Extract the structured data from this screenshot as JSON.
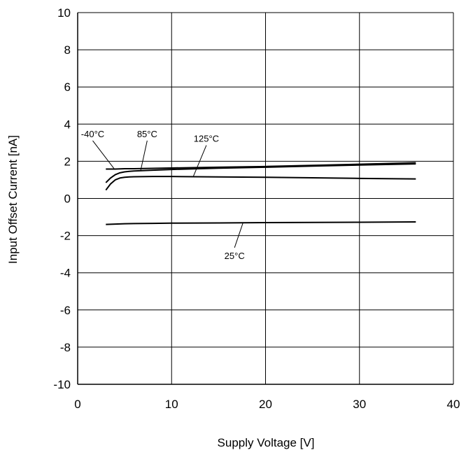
{
  "chart_data": {
    "type": "line",
    "title": "",
    "xlabel": "Supply Voltage [V]",
    "ylabel": "Input Offset Current [nA]",
    "xlim": [
      0,
      40
    ],
    "ylim": [
      -10,
      10
    ],
    "x_ticks": [
      "0",
      "10",
      "20",
      "30",
      "40"
    ],
    "y_ticks": [
      "10",
      "8",
      "6",
      "4",
      "2",
      "0",
      "-2",
      "-4",
      "-6",
      "-8",
      "-10"
    ],
    "x_tick_values": [
      0,
      10,
      20,
      30,
      40
    ],
    "y_tick_values": [
      10,
      8,
      6,
      4,
      2,
      0,
      -2,
      -4,
      -6,
      -8,
      -10
    ],
    "grid": true,
    "legend": "none",
    "line_color": "#000000",
    "series": [
      {
        "name": "-40°C",
        "x": [
          3,
          4,
          5,
          6,
          8,
          10,
          15,
          20,
          25,
          30,
          36
        ],
        "y": [
          1.58,
          1.58,
          1.6,
          1.6,
          1.62,
          1.64,
          1.68,
          1.72,
          1.78,
          1.84,
          1.92
        ]
      },
      {
        "name": "85°C",
        "x": [
          3,
          3.5,
          4,
          4.5,
          5,
          5.5,
          6,
          8,
          10,
          15,
          20,
          25,
          30,
          36
        ],
        "y": [
          0.85,
          1.1,
          1.28,
          1.38,
          1.43,
          1.46,
          1.48,
          1.52,
          1.56,
          1.63,
          1.68,
          1.74,
          1.8,
          1.86
        ]
      },
      {
        "name": "125°C",
        "x": [
          3,
          3.5,
          4,
          4.5,
          5,
          5.5,
          6,
          8,
          10,
          15,
          20,
          25,
          30,
          36
        ],
        "y": [
          0.45,
          0.78,
          1.0,
          1.1,
          1.14,
          1.16,
          1.17,
          1.18,
          1.18,
          1.16,
          1.14,
          1.11,
          1.08,
          1.05
        ]
      },
      {
        "name": "25°C",
        "x": [
          3,
          4,
          5,
          6,
          8,
          10,
          15,
          20,
          25,
          30,
          36
        ],
        "y": [
          -1.4,
          -1.38,
          -1.36,
          -1.35,
          -1.34,
          -1.33,
          -1.32,
          -1.3,
          -1.29,
          -1.28,
          -1.26
        ]
      }
    ],
    "annotations": [
      {
        "text": "-40°C",
        "series": "-40°C",
        "label_x": 1.6,
        "label_y": 3.3,
        "target_x": 3.9,
        "target_y": 1.59
      },
      {
        "text": "85°C",
        "series": "85°C",
        "label_x": 7.4,
        "label_y": 3.3,
        "target_x": 6.7,
        "target_y": 1.49
      },
      {
        "text": "125°C",
        "series": "125°C",
        "label_x": 13.7,
        "label_y": 3.05,
        "target_x": 12.3,
        "target_y": 1.17
      },
      {
        "text": "25°C",
        "series": "25°C",
        "label_x": 16.7,
        "label_y": -3.25,
        "target_x": 17.6,
        "target_y": -1.31
      }
    ]
  }
}
